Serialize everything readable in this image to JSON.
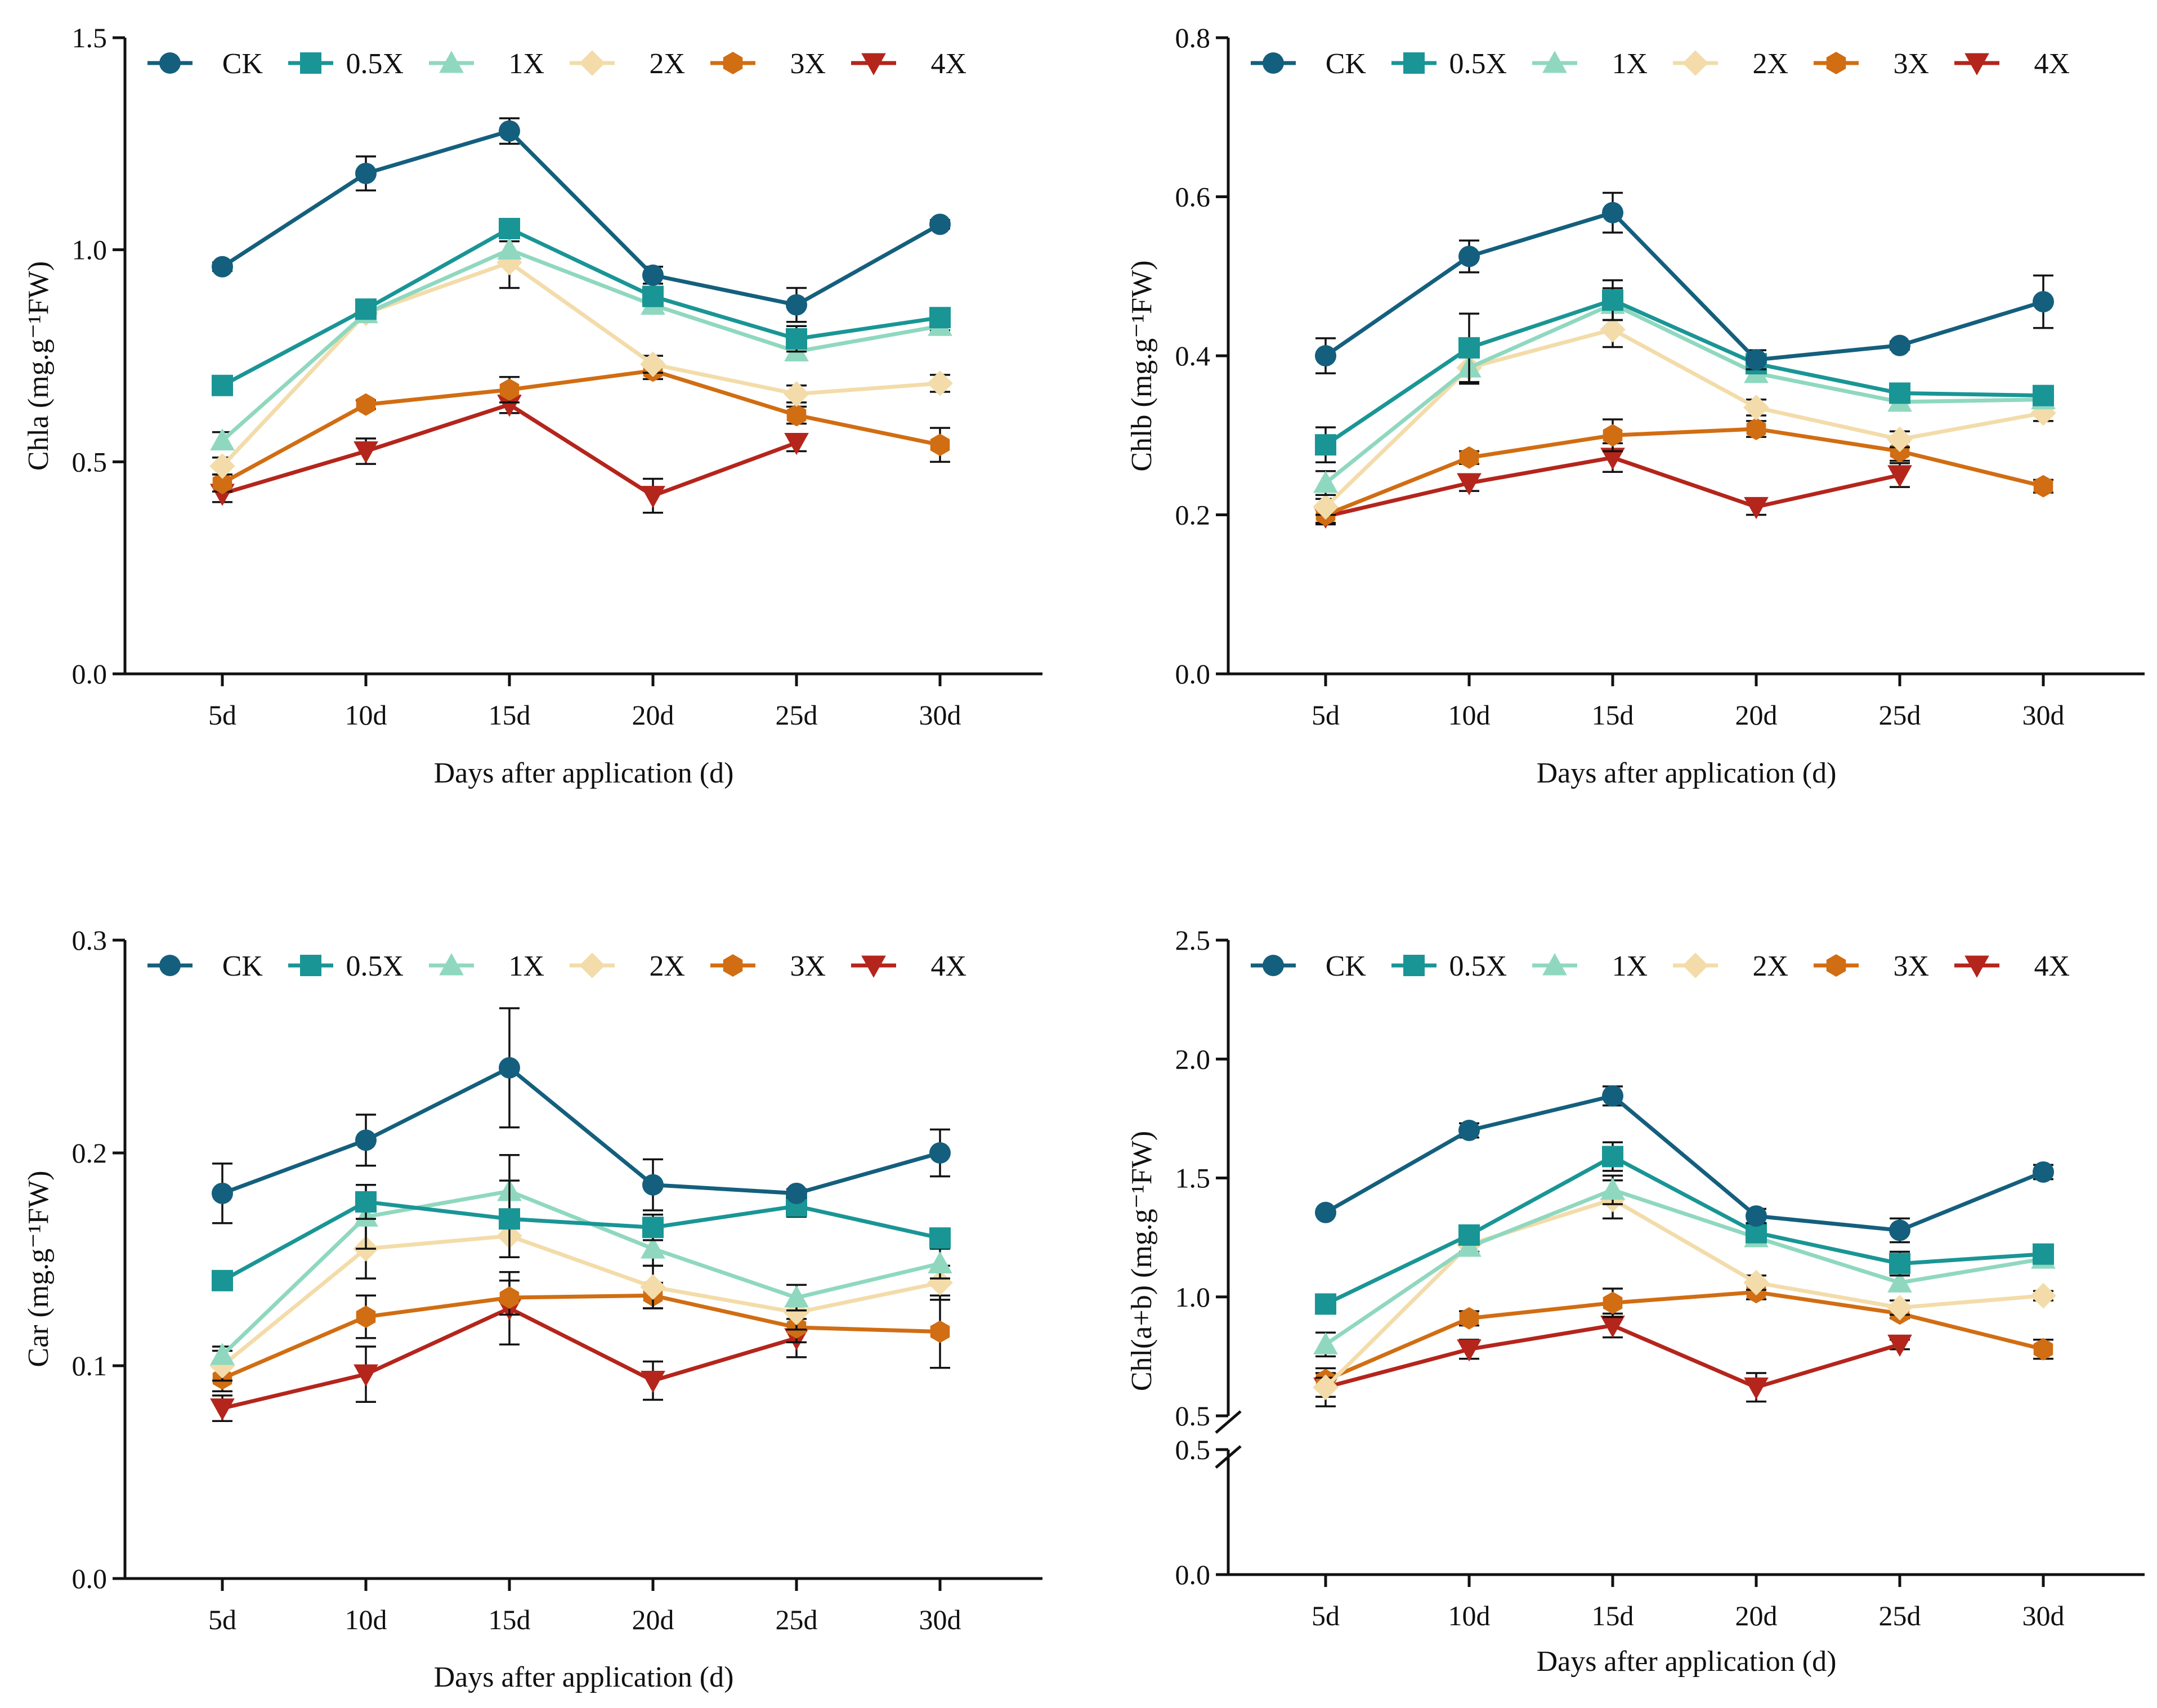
{
  "legend": [
    "CK",
    "0.5X",
    "1X",
    "2X",
    "3X",
    "4X"
  ],
  "colors": {
    "CK": "#145f7d",
    "0.5X": "#1a9596",
    "1X": "#8fd8bf",
    "2X": "#f3dcaa",
    "3X": "#d16d12",
    "4X": "#b4251c",
    "axis": "#111111"
  },
  "markers": {
    "CK": "circle",
    "0.5X": "square",
    "1X": "triangle-up",
    "2X": "diamond",
    "3X": "hexagon",
    "4X": "triangle-down"
  },
  "chart_data": [
    {
      "type": "line",
      "title": "",
      "xlabel": "Days after application (d)",
      "ylabel": "Chla (mg.g⁻¹FW)",
      "categories": [
        "5d",
        "10d",
        "15d",
        "20d",
        "25d",
        "30d"
      ],
      "ylim": [
        0,
        1.5
      ],
      "yticks": [
        "0.0",
        "0.5",
        "1.0",
        "1.5"
      ],
      "grid": false,
      "legend_position": "top",
      "series": [
        {
          "name": "CK",
          "values": [
            0.96,
            1.18,
            1.28,
            0.94,
            0.87,
            1.06
          ],
          "errors": [
            0.01,
            0.04,
            0.03,
            0.02,
            0.04,
            0.01
          ]
        },
        {
          "name": "0.5X",
          "values": [
            0.68,
            0.86,
            1.05,
            0.89,
            0.79,
            0.84
          ],
          "errors": [
            0.01,
            0.01,
            0.02,
            0.02,
            0.03,
            0.01
          ]
        },
        {
          "name": "1X",
          "values": [
            0.55,
            0.85,
            1.0,
            0.87,
            0.76,
            0.82
          ],
          "errors": [
            0.02,
            0.01,
            0.02,
            0.02,
            0.02,
            0.01
          ]
        },
        {
          "name": "2X",
          "values": [
            0.49,
            0.85,
            0.97,
            0.73,
            0.66,
            0.685
          ],
          "errors": [
            0.02,
            0.02,
            0.06,
            0.02,
            0.02,
            0.02
          ]
        },
        {
          "name": "3X",
          "values": [
            0.45,
            0.635,
            0.67,
            0.715,
            0.61,
            0.54
          ],
          "errors": [
            0.02,
            0.01,
            0.03,
            0.02,
            0.02,
            0.04
          ]
        },
        {
          "name": "4X",
          "values": [
            0.425,
            0.525,
            0.635,
            0.42,
            0.545,
            null
          ],
          "errors": [
            0.02,
            0.03,
            0.02,
            0.04,
            0.02,
            null
          ]
        }
      ]
    },
    {
      "type": "line",
      "title": "",
      "xlabel": "Days after application (d)",
      "ylabel": "Chlb (mg.g⁻¹FW)",
      "categories": [
        "5d",
        "10d",
        "15d",
        "20d",
        "25d",
        "30d"
      ],
      "ylim": [
        0,
        0.8
      ],
      "yticks": [
        "0.0",
        "0.2",
        "0.4",
        "0.6",
        "0.8"
      ],
      "grid": false,
      "legend_position": "top",
      "series": [
        {
          "name": "CK",
          "values": [
            0.4,
            0.525,
            0.58,
            0.395,
            0.413,
            0.468
          ],
          "errors": [
            0.022,
            0.02,
            0.025,
            0.012,
            0.005,
            0.033
          ]
        },
        {
          "name": "0.5X",
          "values": [
            0.288,
            0.41,
            0.47,
            0.39,
            0.353,
            0.35
          ],
          "errors": [
            0.022,
            0.043,
            0.025,
            0.012,
            0.008,
            0.01
          ]
        },
        {
          "name": "1X",
          "values": [
            0.24,
            0.385,
            0.465,
            0.378,
            0.342,
            0.345
          ],
          "errors": [
            0.015,
            0.02,
            0.02,
            0.01,
            0.01,
            0.01
          ]
        },
        {
          "name": "2X",
          "values": [
            0.21,
            0.385,
            0.433,
            0.335,
            0.295,
            0.328
          ],
          "errors": [
            0.01,
            0.02,
            0.022,
            0.01,
            0.01,
            0.01
          ]
        },
        {
          "name": "3X",
          "values": [
            0.2,
            0.272,
            0.3,
            0.308,
            0.28,
            0.236
          ],
          "errors": [
            0.01,
            0.008,
            0.02,
            0.01,
            0.012,
            0.008
          ]
        },
        {
          "name": "4X",
          "values": [
            0.198,
            0.24,
            0.272,
            0.21,
            0.25,
            null
          ],
          "errors": [
            0.01,
            0.01,
            0.018,
            0.01,
            0.015,
            null
          ]
        }
      ]
    },
    {
      "type": "line",
      "title": "",
      "xlabel": "Days after application (d)",
      "ylabel": "Car (mg.g⁻¹FW)",
      "categories": [
        "5d",
        "10d",
        "15d",
        "20d",
        "25d",
        "30d"
      ],
      "ylim": [
        0,
        0.3
      ],
      "yticks": [
        "0.0",
        "0.1",
        "0.2",
        "0.3"
      ],
      "grid": false,
      "legend_position": "top",
      "series": [
        {
          "name": "CK",
          "values": [
            0.181,
            0.206,
            0.24,
            0.185,
            0.181,
            0.2
          ],
          "errors": [
            0.014,
            0.012,
            0.028,
            0.012,
            0.002,
            0.011
          ]
        },
        {
          "name": "0.5X",
          "values": [
            0.14,
            0.177,
            0.169,
            0.165,
            0.175,
            0.16
          ],
          "errors": [
            0.002,
            0.008,
            0.018,
            0.006,
            0.005,
            0.004
          ]
        },
        {
          "name": "1X",
          "values": [
            0.105,
            0.17,
            0.182,
            0.155,
            0.132,
            0.148
          ],
          "errors": [
            0.004,
            0.015,
            0.017,
            0.008,
            0.006,
            0.007
          ]
        },
        {
          "name": "2X",
          "values": [
            0.1,
            0.155,
            0.161,
            0.137,
            0.125,
            0.139
          ],
          "errors": [
            0.007,
            0.014,
            0.01,
            0.01,
            0.008,
            0.008
          ]
        },
        {
          "name": "3X",
          "values": [
            0.094,
            0.123,
            0.132,
            0.133,
            0.118,
            0.116
          ],
          "errors": [
            0.006,
            0.01,
            0.008,
            0.006,
            0.007,
            0.017
          ]
        },
        {
          "name": "4X",
          "values": [
            0.08,
            0.096,
            0.127,
            0.093,
            0.113,
            null
          ],
          "errors": [
            0.006,
            0.013,
            0.017,
            0.009,
            0.009,
            null
          ]
        }
      ]
    },
    {
      "type": "line",
      "title": "",
      "xlabel": "Days after application (d)",
      "ylabel": "Chl(a+b) (mg.g⁻¹FW)",
      "categories": [
        "5d",
        "10d",
        "15d",
        "20d",
        "25d",
        "30d"
      ],
      "ylim_upper": [
        0.5,
        2.5
      ],
      "ylim_lower": [
        0,
        0.5
      ],
      "yticks_upper": [
        "0.5",
        "1.0",
        "1.5",
        "2.0",
        "2.5"
      ],
      "yticks_lower": [
        "0.0",
        "0.5"
      ],
      "axis_break": true,
      "grid": false,
      "legend_position": "top",
      "series": [
        {
          "name": "CK",
          "values": [
            1.355,
            1.7,
            1.845,
            1.34,
            1.28,
            1.525
          ],
          "errors": [
            0.01,
            0.03,
            0.04,
            0.03,
            0.05,
            0.03
          ]
        },
        {
          "name": "0.5X",
          "values": [
            0.97,
            1.26,
            1.59,
            1.27,
            1.14,
            1.18
          ],
          "errors": [
            0.02,
            0.03,
            0.06,
            0.03,
            0.05,
            0.02
          ]
        },
        {
          "name": "1X",
          "values": [
            0.8,
            1.21,
            1.45,
            1.25,
            1.06,
            1.16
          ],
          "errors": [
            0.05,
            0.03,
            0.06,
            0.03,
            0.03,
            0.03
          ]
        },
        {
          "name": "2X",
          "values": [
            0.62,
            1.22,
            1.41,
            1.06,
            0.955,
            1.005
          ],
          "errors": [
            0.04,
            0.03,
            0.08,
            0.03,
            0.03,
            0.02
          ]
        },
        {
          "name": "3X",
          "values": [
            0.65,
            0.91,
            0.975,
            1.02,
            0.93,
            0.78
          ],
          "errors": [
            0.03,
            0.03,
            0.06,
            0.03,
            0.02,
            0.04
          ]
        },
        {
          "name": "4X",
          "values": [
            0.62,
            0.78,
            0.88,
            0.62,
            0.8,
            null
          ],
          "errors": [
            0.08,
            0.04,
            0.05,
            0.06,
            0.02,
            null
          ]
        }
      ]
    }
  ]
}
